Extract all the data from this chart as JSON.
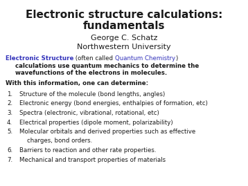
{
  "title_line1": "Electronic structure calculations:",
  "title_line2": "fundamentals",
  "author": "George C. Schatz",
  "university": "Northwestern University",
  "background_color": "#ffffff",
  "title_fontsize": 11.0,
  "subtitle_fontsize": 8.0,
  "body_fontsize": 6.2,
  "bold_body_fontsize": 6.2,
  "blue_color": "#3333bb",
  "black_color": "#1a1a1a",
  "with_info": "With this information, one can determine:",
  "items": [
    "Structure of the molecule (bond lengths, angles)",
    "Electronic energy (bond energies, enthalpies of formation, etc)",
    "Spectra (electronic, vibrational, rotational, etc)",
    "Electrical properties (dipole moment, polarizability)",
    "Molecular orbitals and derived properties such as effective",
    "    charges, bond orders.",
    "Barriers to reaction and other rate properties.",
    "Mechanical and transport properties of materials"
  ],
  "item_numbers": [
    "1.",
    "2.",
    "3.",
    "4.",
    "5.",
    "",
    "6.",
    "7."
  ]
}
